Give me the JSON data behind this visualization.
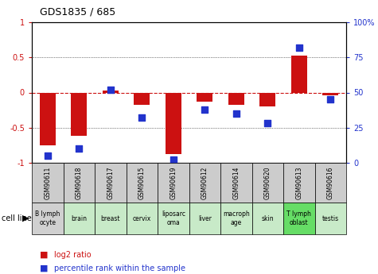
{
  "title": "GDS1835 / 685",
  "samples": [
    "GSM90611",
    "GSM90618",
    "GSM90617",
    "GSM90615",
    "GSM90619",
    "GSM90612",
    "GSM90614",
    "GSM90620",
    "GSM90613",
    "GSM90616"
  ],
  "cell_lines": [
    "B lymph\nocyte",
    "brain",
    "breast",
    "cervix",
    "liposarc\noma",
    "liver",
    "macroph\nage",
    "skin",
    "T lymph\noblast",
    "testis"
  ],
  "cell_bg": [
    "#d0d0d0",
    "#c8eac8",
    "#c8eac8",
    "#c8eac8",
    "#c8eac8",
    "#c8eac8",
    "#c8eac8",
    "#c8eac8",
    "#66dd66",
    "#c8eac8"
  ],
  "log2_ratio": [
    -0.75,
    -0.62,
    0.03,
    -0.18,
    -0.88,
    -0.13,
    -0.18,
    -0.2,
    0.52,
    -0.04
  ],
  "percentile_rank": [
    5,
    10,
    52,
    32,
    2,
    38,
    35,
    28,
    82,
    45
  ],
  "ylim_left": [
    -1,
    1
  ],
  "ylim_right": [
    0,
    100
  ],
  "yticks_left": [
    -1,
    -0.5,
    0,
    0.5,
    1
  ],
  "ytick_labels_left": [
    "-1",
    "-0.5",
    "0",
    "0.5",
    "1"
  ],
  "yticks_right": [
    0,
    25,
    50,
    75,
    100
  ],
  "ytick_labels_right": [
    "0",
    "25",
    "50",
    "75",
    "100%"
  ],
  "bar_color": "#cc1111",
  "dot_color": "#2233cc",
  "zero_line_color": "#cc1111",
  "grid_color": "#111111",
  "bar_width": 0.5,
  "dot_size": 40,
  "sample_box_bg": "#cccccc"
}
